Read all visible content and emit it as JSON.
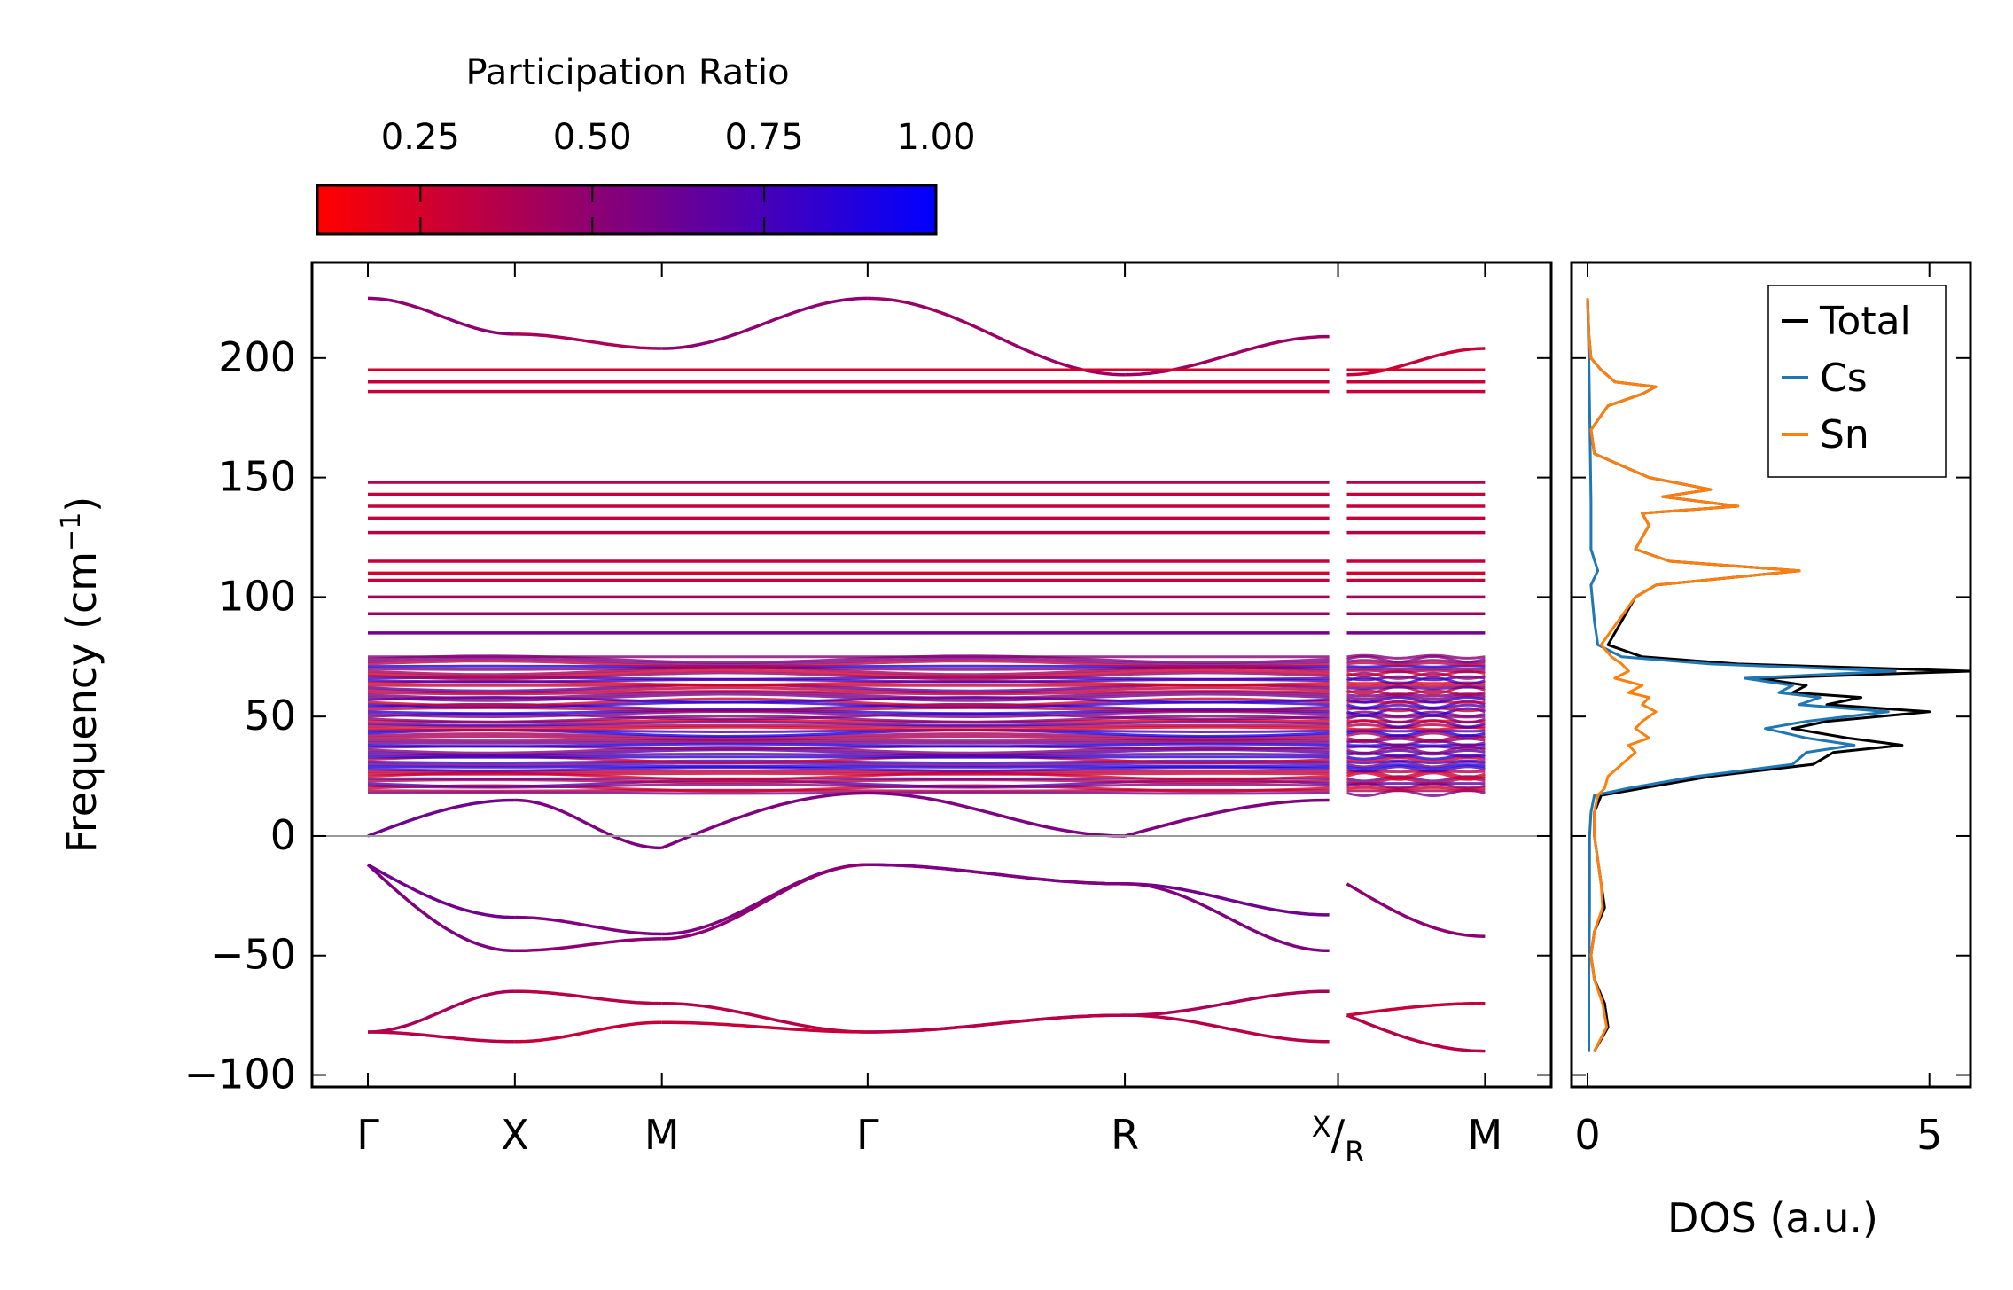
{
  "chart_data": [
    {
      "type": "line",
      "subtype": "phonon-band-structure",
      "title": "",
      "xlabel": "",
      "ylabel": "Frequency (cm",
      "ylabel_sup": "−1",
      "ylabel_close": ")",
      "ylim": [
        -105,
        240
      ],
      "yticks": [
        -100,
        -50,
        0,
        50,
        100,
        150,
        200
      ],
      "ytick_labels": [
        "−100",
        "−50",
        "0",
        "50",
        "100",
        "150",
        "200"
      ],
      "kpoint_positions": [
        0,
        1,
        2,
        3.4,
        5.15,
        6.6,
        7.6
      ],
      "kpoint_labels": [
        "Γ",
        "X",
        "M",
        "Γ",
        "R",
        "X",
        "M"
      ],
      "kpoint_label_r": "R",
      "zero_line": 0,
      "colorbar": {
        "label": "Participation Ratio",
        "range": [
          0.1,
          1.0
        ],
        "ticks": [
          0.25,
          0.5,
          0.75,
          1.0
        ],
        "tick_labels": [
          "0.25",
          "0.50",
          "0.75",
          "1.00"
        ],
        "colormap": [
          "#ff0000",
          "#0000ff"
        ]
      },
      "bands": [
        {
          "segment": "Γ-X",
          "from": 225,
          "to": 210,
          "pr": 0.5,
          "shape": "cos"
        },
        {
          "segment": "X-M",
          "from": 210,
          "to": 204,
          "pr": 0.4,
          "shape": "cos"
        },
        {
          "segment": "M-Γ",
          "from": 204,
          "to": 225,
          "pr": 0.5,
          "shape": "cos"
        },
        {
          "segment": "Γ-R",
          "from": 225,
          "to": 193,
          "pr": 0.45,
          "shape": "cos"
        },
        {
          "segment": "R-X",
          "from": 193,
          "to": 209,
          "pr": 0.45,
          "shape": "cos"
        },
        {
          "segment": "R-M",
          "from": 193,
          "to": 204,
          "pr": 0.3,
          "shape": "cos"
        },
        {
          "segment": "all",
          "value": 195,
          "pr": 0.25
        },
        {
          "segment": "all",
          "value": 190,
          "pr": 0.3
        },
        {
          "segment": "all",
          "value": 186,
          "pr": 0.3
        },
        {
          "segment": "all",
          "value": 148,
          "pr": 0.35
        },
        {
          "segment": "all",
          "value": 143,
          "pr": 0.3
        },
        {
          "segment": "all",
          "value": 138,
          "pr": 0.3
        },
        {
          "segment": "all",
          "value": 133,
          "pr": 0.3
        },
        {
          "segment": "all",
          "value": 127,
          "pr": 0.35
        },
        {
          "segment": "all",
          "value": 115,
          "pr": 0.3
        },
        {
          "segment": "all",
          "value": 110,
          "pr": 0.25
        },
        {
          "segment": "all",
          "value": 107,
          "pr": 0.3
        },
        {
          "segment": "all",
          "value": 100,
          "pr": 0.4
        },
        {
          "segment": "all",
          "value": 93,
          "pr": 0.45
        },
        {
          "segment": "all",
          "value": 85,
          "pr": 0.6
        },
        {
          "segment": "Γ-X",
          "from": 0,
          "to": 15,
          "pr": 0.6,
          "shape": "sin"
        },
        {
          "segment": "X-M",
          "from": 15,
          "to": -5,
          "pr": 0.55,
          "shape": "cos"
        },
        {
          "segment": "M-Γ",
          "from": -5,
          "to": 18,
          "pr": 0.55,
          "shape": "sin"
        },
        {
          "segment": "Γ-R",
          "from": 18,
          "to": 0,
          "pr": 0.55,
          "shape": "cos"
        },
        {
          "segment": "R-X",
          "from": 0,
          "to": 15,
          "pr": 0.55,
          "shape": "sin"
        },
        {
          "segment": "Γ-X",
          "from": -12,
          "to": -34,
          "pr": 0.6,
          "shape": "sin"
        },
        {
          "segment": "X-M",
          "from": -34,
          "to": -41,
          "pr": 0.55,
          "shape": "cos"
        },
        {
          "segment": "M-Γ",
          "from": -41,
          "to": -12,
          "pr": 0.55,
          "shape": "cos"
        },
        {
          "segment": "Γ-R",
          "from": -12,
          "to": -20,
          "pr": 0.6,
          "shape": "cos"
        },
        {
          "segment": "R-X",
          "from": -20,
          "to": -33,
          "pr": 0.6,
          "shape": "cos"
        },
        {
          "segment": "Γ-X",
          "from": -12,
          "to": -48,
          "pr": 0.55,
          "shape": "sin"
        },
        {
          "segment": "X-M",
          "from": -48,
          "to": -43,
          "pr": 0.5,
          "shape": "cos"
        },
        {
          "segment": "M-Γ",
          "from": -43,
          "to": -12,
          "pr": 0.5,
          "shape": "cos"
        },
        {
          "segment": "Γ-R",
          "from": -12,
          "to": -20,
          "pr": 0.55,
          "shape": "cos"
        },
        {
          "segment": "R-X",
          "from": -20,
          "to": -48,
          "pr": 0.55,
          "shape": "cos"
        },
        {
          "segment": "R-M",
          "from": -20,
          "to": -42,
          "pr": 0.5,
          "shape": "sin"
        },
        {
          "segment": "Γ-X",
          "from": -82,
          "to": -65,
          "pr": 0.4,
          "shape": "cos"
        },
        {
          "segment": "X-M",
          "from": -65,
          "to": -70,
          "pr": 0.35,
          "shape": "cos"
        },
        {
          "segment": "M-Γ",
          "from": -70,
          "to": -82,
          "pr": 0.35,
          "shape": "cos"
        },
        {
          "segment": "Γ-R",
          "from": -82,
          "to": -75,
          "pr": 0.4,
          "shape": "cos"
        },
        {
          "segment": "R-X",
          "from": -75,
          "to": -65,
          "pr": 0.4,
          "shape": "cos"
        },
        {
          "segment": "Γ-X",
          "from": -82,
          "to": -86,
          "pr": 0.35,
          "shape": "cos"
        },
        {
          "segment": "X-M",
          "from": -86,
          "to": -78,
          "pr": 0.3,
          "shape": "cos"
        },
        {
          "segment": "M-Γ",
          "from": -78,
          "to": -82,
          "pr": 0.3,
          "shape": "cos"
        },
        {
          "segment": "Γ-R",
          "from": -82,
          "to": -75,
          "pr": 0.35,
          "shape": "cos"
        },
        {
          "segment": "R-X",
          "from": -75,
          "to": -86,
          "pr": 0.35,
          "shape": "cos"
        },
        {
          "segment": "R-M",
          "from": -75,
          "to": -90,
          "pr": 0.35,
          "shape": "sin"
        },
        {
          "segment": "R-M",
          "from": -75,
          "to": -70,
          "pr": 0.3,
          "shape": "sin"
        }
      ],
      "dense_band_region": {
        "range": [
          18,
          75
        ],
        "pr_range": [
          0.2,
          0.95
        ]
      }
    },
    {
      "type": "line",
      "subtype": "density-of-states",
      "xlabel": "DOS (a.u.)",
      "ylabel": "",
      "xlim": [
        0,
        5.6
      ],
      "xticks": [
        0,
        5
      ],
      "xtick_labels": [
        "0",
        "5"
      ],
      "ylim": [
        -105,
        240
      ],
      "legend_position": "top-right",
      "series": [
        {
          "name": "Total",
          "color": "#000000",
          "y": [
            -90,
            -80,
            -70,
            -60,
            -50,
            -40,
            -30,
            -20,
            -10,
            0,
            10,
            17,
            20,
            25,
            30,
            35,
            38,
            41,
            45,
            48,
            52,
            55,
            58,
            60,
            63,
            66,
            69,
            72,
            75,
            80,
            90,
            100,
            105,
            111,
            115,
            120,
            125,
            130,
            135,
            138,
            142,
            145,
            150,
            160,
            170,
            180,
            185,
            188,
            190,
            195,
            200,
            210,
            225
          ],
          "values": [
            0.1,
            0.3,
            0.25,
            0.1,
            0.05,
            0.1,
            0.25,
            0.2,
            0.15,
            0.1,
            0.1,
            0.2,
            0.8,
            1.8,
            3.3,
            3.6,
            4.6,
            3.8,
            3.0,
            3.5,
            5.0,
            3.5,
            4.0,
            3.0,
            3.2,
            2.5,
            5.6,
            2.2,
            0.8,
            0.3,
            0.5,
            0.7,
            1.0,
            3.1,
            1.2,
            0.7,
            0.8,
            0.9,
            0.8,
            2.2,
            1.1,
            1.8,
            0.9,
            0.1,
            0.05,
            0.3,
            0.8,
            1.0,
            0.4,
            0.2,
            0.05,
            0.02,
            0
          ]
        },
        {
          "name": "Cs",
          "color": "#1f77b4",
          "y": [
            -90,
            -60,
            -30,
            0,
            10,
            17,
            20,
            25,
            30,
            35,
            38,
            41,
            45,
            48,
            52,
            55,
            58,
            60,
            63,
            66,
            69,
            72,
            75,
            80,
            90,
            105,
            111,
            120,
            140,
            200,
            225
          ],
          "values": [
            0.02,
            0.02,
            0.03,
            0.03,
            0.05,
            0.1,
            0.6,
            1.6,
            3.0,
            3.2,
            3.9,
            3.2,
            2.6,
            3.2,
            4.4,
            3.1,
            3.4,
            2.8,
            3.0,
            2.3,
            4.5,
            1.8,
            0.5,
            0.15,
            0.1,
            0.05,
            0.15,
            0.05,
            0.05,
            0.02,
            0
          ]
        },
        {
          "name": "Sn",
          "color": "#ff7f0e",
          "y": [
            -90,
            -80,
            -70,
            -60,
            -50,
            -40,
            -30,
            -20,
            -10,
            0,
            10,
            17,
            20,
            25,
            30,
            35,
            38,
            41,
            45,
            48,
            52,
            55,
            58,
            60,
            63,
            66,
            69,
            72,
            75,
            80,
            90,
            100,
            105,
            111,
            115,
            120,
            125,
            130,
            135,
            138,
            142,
            145,
            150,
            160,
            170,
            180,
            185,
            188,
            190,
            195,
            200,
            210,
            225
          ],
          "values": [
            0.1,
            0.28,
            0.22,
            0.1,
            0.05,
            0.1,
            0.22,
            0.2,
            0.15,
            0.1,
            0.1,
            0.15,
            0.25,
            0.3,
            0.5,
            0.7,
            0.6,
            0.9,
            0.7,
            0.8,
            1.0,
            0.8,
            0.9,
            0.6,
            0.8,
            0.4,
            0.6,
            0.5,
            0.35,
            0.2,
            0.45,
            0.7,
            1.0,
            3.1,
            1.2,
            0.7,
            0.8,
            0.9,
            0.8,
            2.2,
            1.1,
            1.8,
            0.9,
            0.1,
            0.05,
            0.3,
            0.8,
            1.0,
            0.4,
            0.2,
            0.05,
            0.02,
            0
          ]
        }
      ]
    }
  ]
}
